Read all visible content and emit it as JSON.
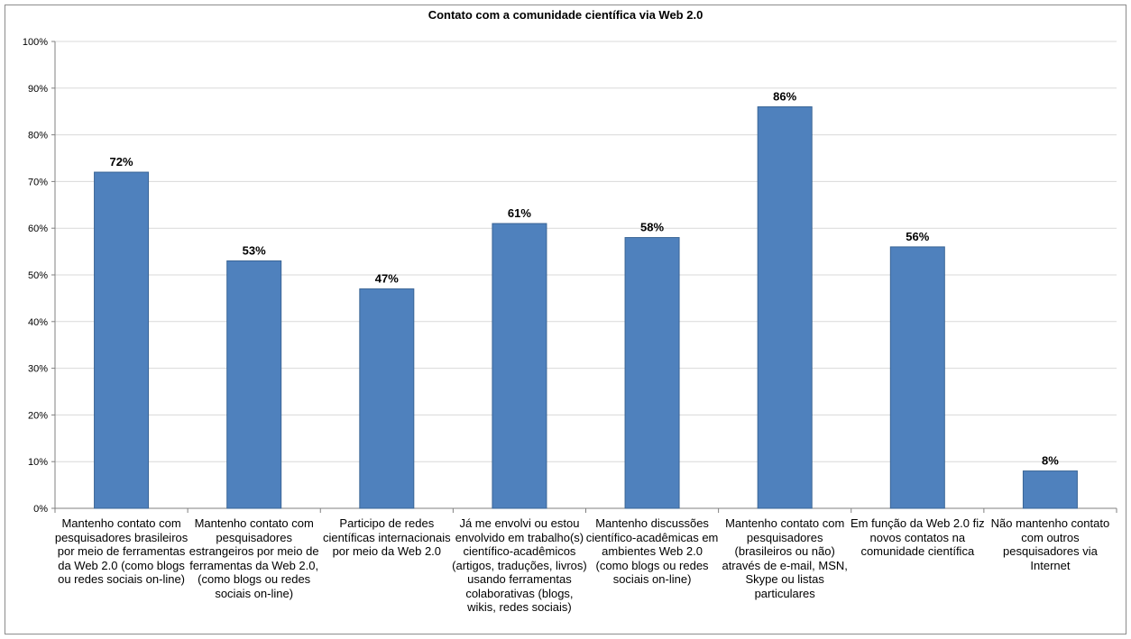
{
  "chart_data": {
    "type": "bar",
    "title": "Contato com a comunidade científica via Web 2.0",
    "xlabel": "",
    "ylabel": "",
    "ylim": [
      0,
      100
    ],
    "yticks": [
      "0%",
      "10%",
      "20%",
      "30%",
      "40%",
      "50%",
      "60%",
      "70%",
      "80%",
      "90%",
      "100%"
    ],
    "grid": true,
    "legend": "none",
    "bar_color": "#4f81bd",
    "categories": [
      "Mantenho contato com pesquisadores brasileiros por meio de ferramentas da Web 2.0 (como blogs ou redes sociais on-line)",
      "Mantenho contato com pesquisadores estrangeiros por meio de ferramentas da Web 2.0, (como blogs ou redes sociais on-line)",
      "Participo de redes científicas internacionais por meio da Web 2.0",
      "Já me envolvi ou estou envolvido em trabalho(s) científico-acadêmicos (artigos, traduções, livros) usando ferramentas colaborativas (blogs, wikis, redes sociais)",
      "Mantenho discussões científico-acadêmicas em ambientes Web 2.0 (como blogs ou redes sociais on-line)",
      "Mantenho contato com pesquisadores (brasileiros ou não) através de e-mail, MSN, Skype ou listas particulares",
      "Em função da Web 2.0 fiz novos contatos na comunidade científica",
      "Não mantenho contato com outros pesquisadores via Internet"
    ],
    "values": [
      72,
      53,
      47,
      61,
      58,
      86,
      56,
      8
    ],
    "data_labels": [
      "72%",
      "53%",
      "47%",
      "61%",
      "58%",
      "86%",
      "56%",
      "8%"
    ]
  }
}
